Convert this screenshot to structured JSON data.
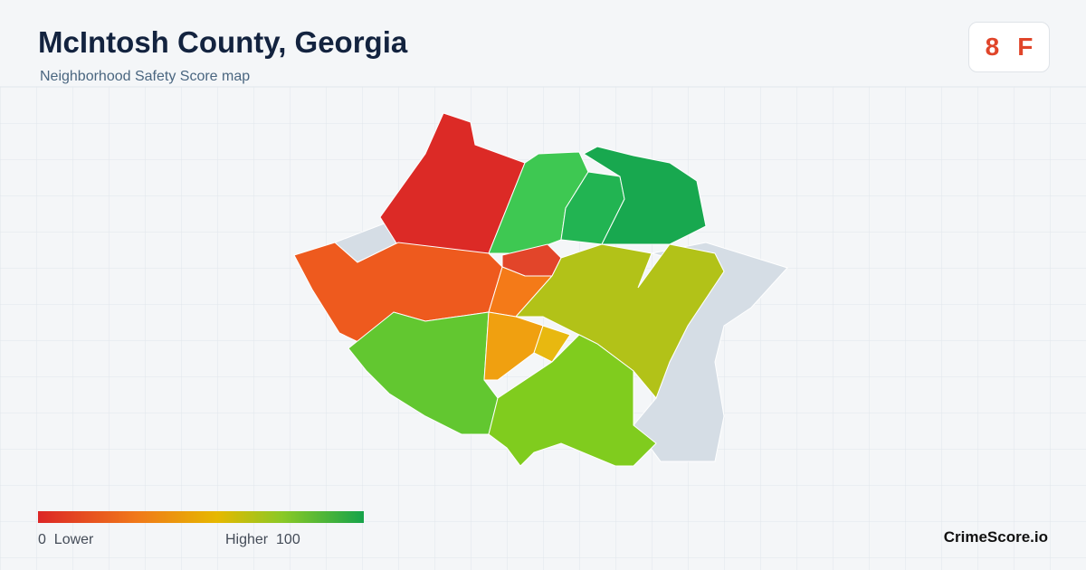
{
  "header": {
    "title": "McIntosh County, Georgia",
    "subtitle": "Neighborhood Safety Score map"
  },
  "score": {
    "value": 8,
    "grade": "F"
  },
  "legend": {
    "min": 0,
    "min_label": "Lower",
    "max_label": "Higher",
    "max": 100
  },
  "brand": "CrimeScore.io"
}
